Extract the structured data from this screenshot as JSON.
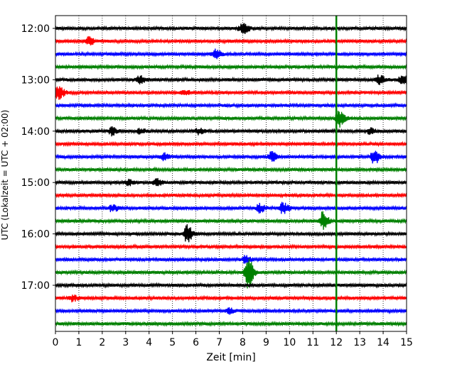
{
  "chart_data": {
    "type": "line",
    "xlabel": "Zeit  [min]",
    "ylabel": "UTC (Lokalzeit = UTC + 02:00)",
    "xlim": [
      0,
      15
    ],
    "x_ticks": [
      0,
      1,
      2,
      3,
      4,
      5,
      6,
      7,
      8,
      9,
      10,
      11,
      12,
      13,
      14,
      15
    ],
    "y_ticks": [
      "12:00",
      "13:00",
      "14:00",
      "15:00",
      "16:00",
      "17:00"
    ],
    "grid": "vertical dotted",
    "trace_interval_min": 15,
    "trace_colors": [
      "#000000",
      "#ff0000",
      "#0000ff",
      "#008000"
    ],
    "traces": [
      {
        "start": "12:00",
        "color": "#000000",
        "events": [
          {
            "x": 7.9,
            "amp": 0.35
          },
          {
            "x": 8.1,
            "amp": 0.3
          }
        ]
      },
      {
        "start": "12:15",
        "color": "#ff0000",
        "events": [
          {
            "x": 1.4,
            "amp": 0.45
          }
        ]
      },
      {
        "start": "12:30",
        "color": "#0000ff",
        "events": [
          {
            "x": 6.8,
            "amp": 0.6
          }
        ]
      },
      {
        "start": "12:45",
        "color": "#008000",
        "events": []
      },
      {
        "start": "13:00",
        "color": "#000000",
        "events": [
          {
            "x": 3.55,
            "amp": 0.45
          },
          {
            "x": 13.8,
            "amp": 0.55
          },
          {
            "x": 14.8,
            "amp": 0.65
          }
        ]
      },
      {
        "start": "13:15",
        "color": "#ff0000",
        "events": [
          {
            "x": 0.1,
            "amp": 0.9
          },
          {
            "x": 5.5,
            "amp": 0.25
          }
        ]
      },
      {
        "start": "13:30",
        "color": "#0000ff",
        "events": []
      },
      {
        "start": "13:45",
        "color": "#008000",
        "events": [
          {
            "x": 12.1,
            "amp": 1.0
          }
        ]
      },
      {
        "start": "14:00",
        "color": "#000000",
        "events": [
          {
            "x": 2.4,
            "amp": 0.45
          },
          {
            "x": 3.6,
            "amp": 0.3
          },
          {
            "x": 6.1,
            "amp": 0.35
          },
          {
            "x": 13.4,
            "amp": 0.3
          }
        ]
      },
      {
        "start": "14:15",
        "color": "#ff0000",
        "events": []
      },
      {
        "start": "14:30",
        "color": "#0000ff",
        "events": [
          {
            "x": 4.6,
            "amp": 0.4
          },
          {
            "x": 9.2,
            "amp": 0.55
          },
          {
            "x": 13.6,
            "amp": 1.0
          }
        ]
      },
      {
        "start": "14:45",
        "color": "#008000",
        "events": []
      },
      {
        "start": "15:00",
        "color": "#000000",
        "events": [
          {
            "x": 3.1,
            "amp": 0.3
          },
          {
            "x": 4.3,
            "amp": 0.45
          }
        ]
      },
      {
        "start": "15:15",
        "color": "#ff0000",
        "events": []
      },
      {
        "start": "15:30",
        "color": "#0000ff",
        "events": [
          {
            "x": 2.4,
            "amp": 0.4
          },
          {
            "x": 8.7,
            "amp": 0.45
          },
          {
            "x": 9.7,
            "amp": 0.7
          }
        ]
      },
      {
        "start": "15:45",
        "color": "#008000",
        "events": [
          {
            "x": 11.4,
            "amp": 1.0
          }
        ]
      },
      {
        "start": "16:00",
        "color": "#000000",
        "events": [
          {
            "x": 5.6,
            "amp": 1.0
          }
        ]
      },
      {
        "start": "16:15",
        "color": "#ff0000",
        "events": []
      },
      {
        "start": "16:30",
        "color": "#0000ff",
        "events": [
          {
            "x": 8.1,
            "amp": 0.4
          }
        ]
      },
      {
        "start": "16:45",
        "color": "#008000",
        "events": [
          {
            "x": 8.2,
            "amp": 1.8
          }
        ]
      },
      {
        "start": "17:00",
        "color": "#000000",
        "events": []
      },
      {
        "start": "17:15",
        "color": "#ff0000",
        "events": [
          {
            "x": 0.7,
            "amp": 0.35
          }
        ]
      },
      {
        "start": "17:30",
        "color": "#0000ff",
        "events": [
          {
            "x": 7.4,
            "amp": 0.3
          }
        ]
      },
      {
        "start": "17:45",
        "color": "#008000",
        "events": []
      }
    ],
    "marker_line": {
      "x": 12.0,
      "color": "#008000"
    }
  }
}
